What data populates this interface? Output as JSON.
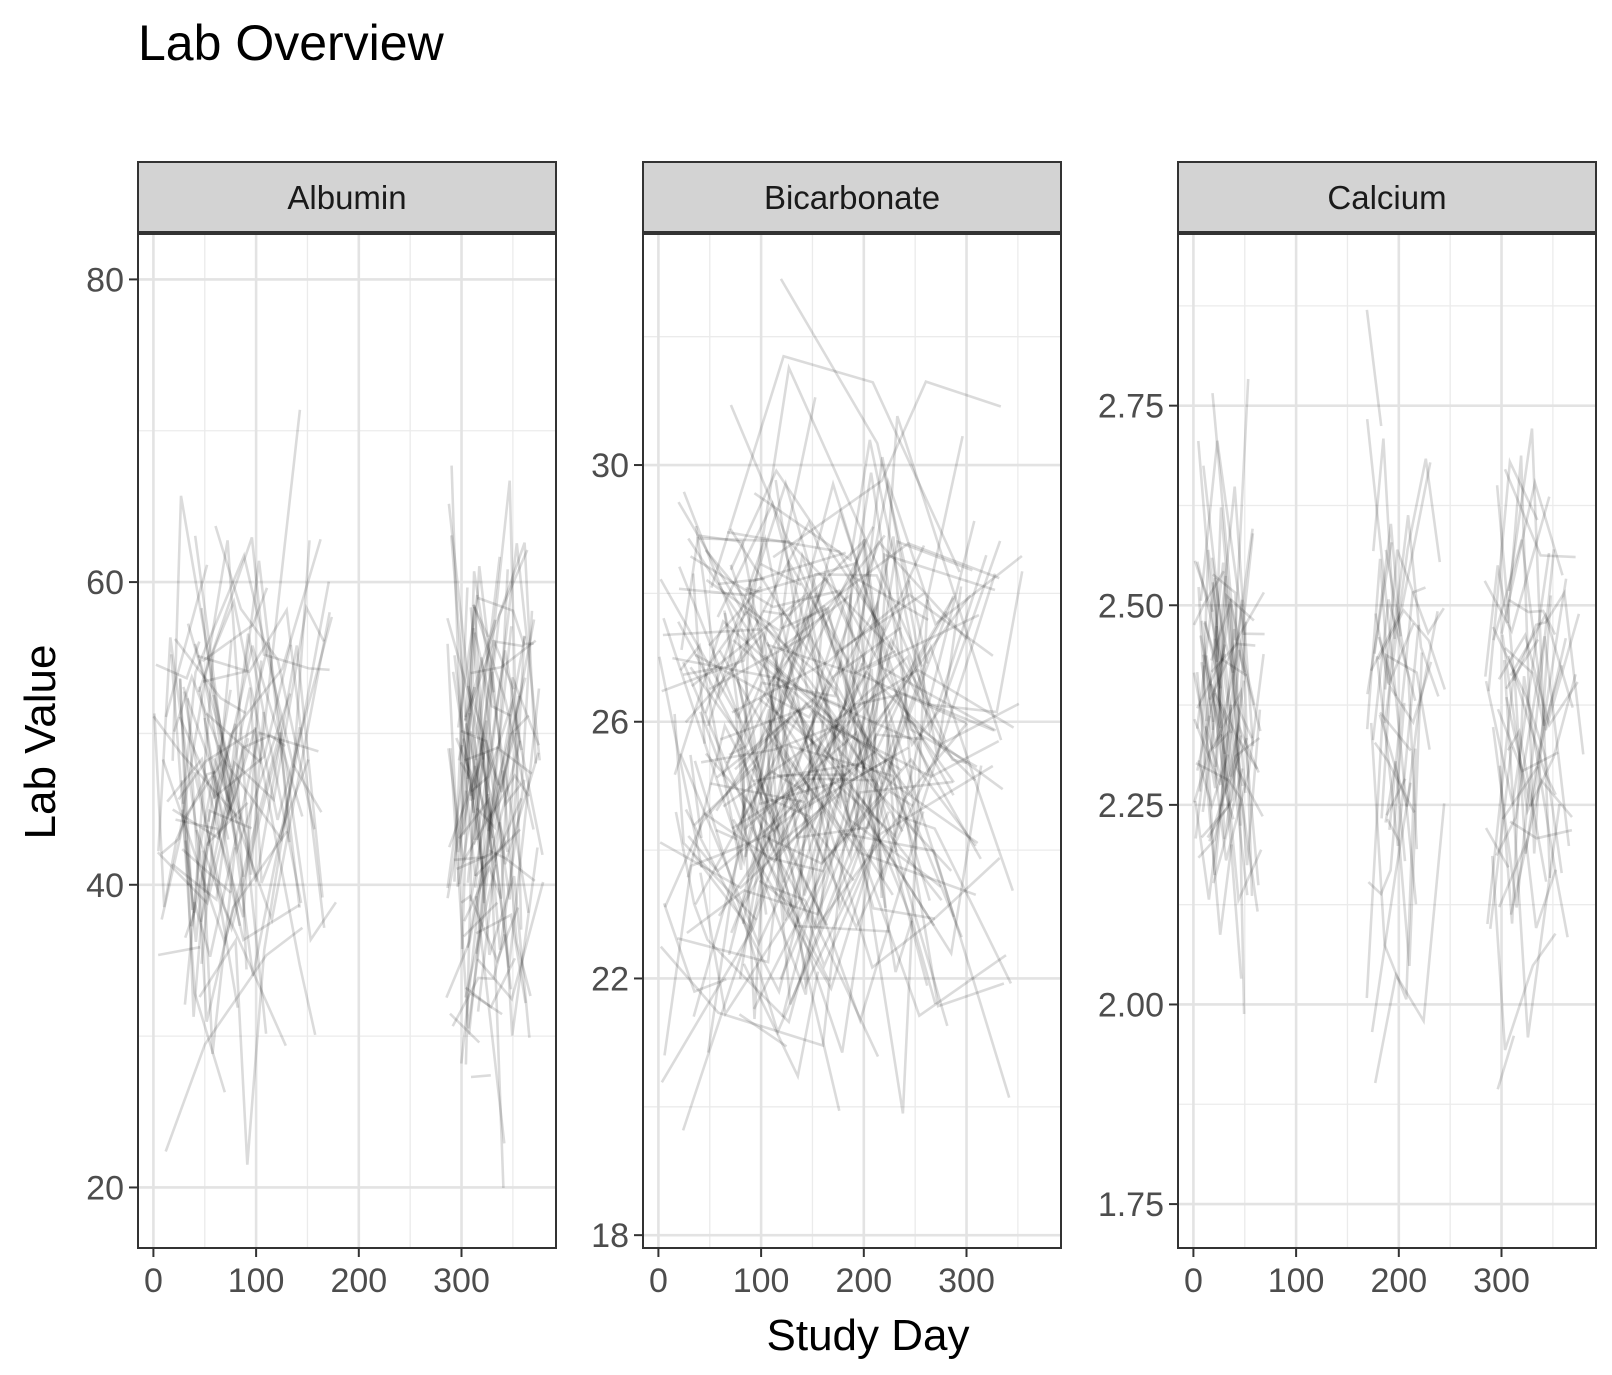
{
  "chart_data": {
    "type": "line",
    "title": "Lab Overview",
    "xlabel": "Study Day",
    "ylabel": "Lab Value",
    "grid": true,
    "legend": "none",
    "line_color": "#000000",
    "line_opacity": 0.14,
    "strip_fill": "#d3d3d3",
    "panels": [
      {
        "name": "Albumin",
        "xlim": [
          -15,
          392
        ],
        "ylim": [
          16,
          83
        ],
        "x_ticks": [
          0,
          100,
          200,
          300
        ],
        "y_ticks": [
          20,
          40,
          60,
          80
        ],
        "value_range": [
          19,
          80
        ],
        "value_center": 46,
        "value_spread": 9,
        "day_clusters": [
          [
            0,
            175
          ],
          [
            285,
            375
          ]
        ],
        "subject_count": 130
      },
      {
        "name": "Bicarbonate",
        "xlim": [
          -15,
          392
        ],
        "ylim": [
          17.8,
          33.6
        ],
        "x_ticks": [
          0,
          100,
          200,
          300
        ],
        "y_ticks": [
          18,
          22,
          26,
          30
        ],
        "value_range": [
          18.5,
          32.9
        ],
        "value_center": 25.8,
        "value_spread": 2.3,
        "day_clusters": [
          [
            0,
            350
          ]
        ],
        "subject_count": 140
      },
      {
        "name": "Calcium",
        "xlim": [
          -15,
          392
        ],
        "ylim": [
          1.695,
          2.965
        ],
        "x_ticks": [
          0,
          100,
          200,
          300
        ],
        "y_ticks": [
          1.75,
          2.0,
          2.25,
          2.5,
          2.75
        ],
        "value_range": [
          1.82,
          2.87
        ],
        "value_center": 2.38,
        "value_spread": 0.17,
        "day_clusters": [
          [
            0,
            65
          ],
          [
            165,
            240
          ],
          [
            280,
            375
          ]
        ],
        "subject_count": 110
      }
    ]
  }
}
